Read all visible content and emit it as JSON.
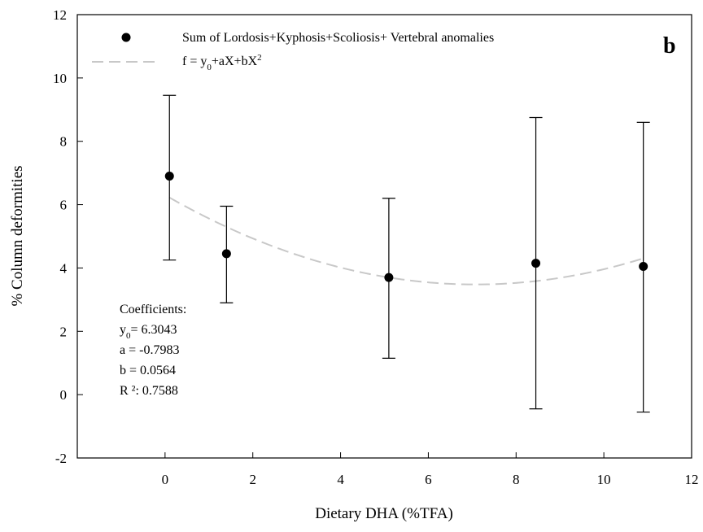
{
  "chart_data": {
    "type": "scatter",
    "panel_label": "b",
    "xlabel": "Dietary DHA (%TFA)",
    "ylabel": "% Column deformities",
    "xlim": [
      -2,
      12
    ],
    "ylim": [
      -2,
      12
    ],
    "x_ticks": [
      0,
      2,
      4,
      6,
      8,
      10,
      12
    ],
    "y_ticks": [
      -2,
      0,
      2,
      4,
      6,
      8,
      10,
      12
    ],
    "grid": false,
    "legend_position": "top",
    "series": [
      {
        "name": "Sum of  Lordosis+Kyphosis+Scoliosis+ Vertebral  anomalies",
        "type": "scatter-errorbar",
        "color": "#000000",
        "points": [
          {
            "x": 0.1,
            "y": 6.9,
            "err_low": 4.25,
            "err_high": 9.45
          },
          {
            "x": 1.4,
            "y": 4.45,
            "err_low": 2.9,
            "err_high": 5.95
          },
          {
            "x": 5.1,
            "y": 3.7,
            "err_low": 1.15,
            "err_high": 6.2
          },
          {
            "x": 8.45,
            "y": 4.15,
            "err_low": -0.45,
            "err_high": 8.75
          },
          {
            "x": 10.9,
            "y": 4.05,
            "err_low": -0.55,
            "err_high": 8.6
          }
        ]
      },
      {
        "name": "f = y0+aX+bX2",
        "type": "fit-curve",
        "color": "#c8c8c8",
        "dashed": true,
        "model": "quadratic",
        "x_range": [
          0.1,
          10.9
        ],
        "coefficients": {
          "y0": 6.3043,
          "a": -0.7983,
          "b": 0.0564
        }
      }
    ],
    "legend": [
      {
        "symbol": "dot",
        "text": "Sum of  Lordosis+Kyphosis+Scoliosis+ Vertebral  anomalies"
      },
      {
        "symbol": "dash",
        "text": "f = y0+aX+bX2"
      }
    ],
    "annotation": {
      "title": "Coefficients:",
      "lines": [
        "y0= 6.3043",
        "a = -0.7983",
        "b = 0.0564",
        "R ²: 0.7588"
      ]
    }
  }
}
